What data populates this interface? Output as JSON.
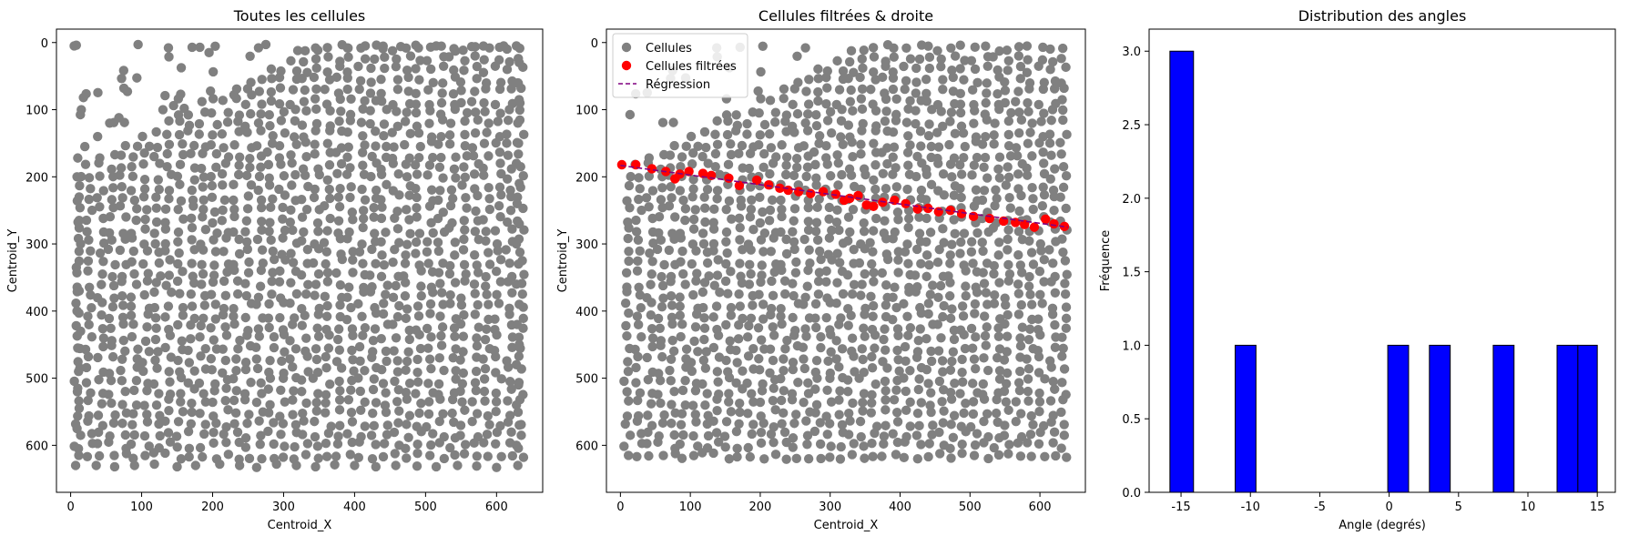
{
  "chart_data": [
    {
      "type": "scatter",
      "title": "Toutes les cellules",
      "xlabel": "Centroid_X",
      "ylabel": "Centroid_Y",
      "xlim": [
        -20,
        665
      ],
      "ylim": [
        670,
        -20
      ],
      "y_inverted": true,
      "xticks": [
        0,
        100,
        200,
        300,
        400,
        500,
        600
      ],
      "yticks": [
        0,
        100,
        200,
        300,
        400,
        500,
        600
      ],
      "series": [
        {
          "color": "#808080",
          "points": [
            [
              5,
              5
            ],
            [
              8,
              4
            ],
            [
              95,
              3
            ],
            [
              182,
              7
            ],
            [
              195,
              15
            ],
            [
              15,
              100
            ],
            [
              18,
              82
            ],
            [
              75,
              68
            ],
            [
              80,
              73
            ],
            [
              68,
              112
            ],
            [
              155,
              77
            ],
            [
              133,
              79
            ],
            [
              130,
              100
            ],
            [
              145,
              94
            ],
            [
              160,
              98
            ],
            [
              185,
              88
            ],
            [
              230,
              78
            ],
            [
              255,
              78
            ],
            [
              275,
              3
            ],
            [
              320,
              12
            ],
            [
              345,
              8
            ],
            [
              20,
              155
            ],
            [
              38,
              140
            ],
            [
              55,
              120
            ],
            [
              10,
              172
            ],
            [
              9,
              200
            ],
            [
              12,
              230
            ],
            [
              12,
              265
            ],
            [
              14,
              300
            ],
            [
              8,
              335
            ],
            [
              12,
              370
            ],
            [
              9,
              400
            ],
            [
              14,
              430
            ],
            [
              10,
              455
            ],
            [
              13,
              485
            ],
            [
              10,
              515
            ],
            [
              12,
              545
            ],
            [
              9,
              575
            ],
            [
              11,
              605
            ],
            [
              7,
              630
            ],
            [
              36,
              630
            ],
            [
              62,
              632
            ],
            [
              90,
              630
            ],
            [
              118,
              628
            ],
            [
              150,
              632
            ],
            [
              176,
              630
            ],
            [
              210,
              628
            ],
            [
              238,
              630
            ],
            [
              262,
              633
            ],
            [
              290,
              628
            ],
            [
              318,
              630
            ],
            [
              345,
              632
            ],
            [
              372,
              629
            ],
            [
              400,
              630
            ],
            [
              430,
              632
            ],
            [
              458,
              630
            ],
            [
              488,
              631
            ],
            [
              515,
              632
            ],
            [
              545,
              630
            ],
            [
              572,
              631
            ],
            [
              600,
              633
            ],
            [
              630,
              630
            ],
            [
              628,
              600
            ],
            [
              632,
              570
            ],
            [
              628,
              540
            ],
            [
              631,
              510
            ],
            [
              628,
              480
            ],
            [
              632,
              450
            ],
            [
              629,
              420
            ],
            [
              632,
              390
            ],
            [
              628,
              360
            ],
            [
              631,
              330
            ],
            [
              628,
              300
            ],
            [
              632,
              270
            ],
            [
              629,
              240
            ],
            [
              632,
              210
            ],
            [
              628,
              180
            ],
            [
              631,
              150
            ],
            [
              630,
              120
            ],
            [
              633,
              90
            ],
            [
              630,
              60
            ],
            [
              632,
              30
            ],
            [
              628,
              5
            ],
            [
              610,
              5
            ],
            [
              590,
              8
            ],
            [
              565,
              6
            ],
            [
              540,
              9
            ],
            [
              515,
              5
            ],
            [
              490,
              8
            ],
            [
              465,
              6
            ],
            [
              440,
              9
            ],
            [
              415,
              5
            ],
            [
              390,
              8
            ]
          ],
          "fill_area": {
            "note": "dense grid of cells across the field"
          }
        }
      ]
    },
    {
      "type": "scatter",
      "title": "Cellules filtrées & droite",
      "xlabel": "Centroid_X",
      "ylabel": "Centroid_Y",
      "xlim": [
        -20,
        665
      ],
      "ylim": [
        670,
        -20
      ],
      "y_inverted": true,
      "xticks": [
        0,
        100,
        200,
        300,
        400,
        500,
        600
      ],
      "yticks": [
        0,
        100,
        200,
        300,
        400,
        500,
        600
      ],
      "legend_position": "top-left",
      "series": [
        {
          "name": "Cellules",
          "color": "#808080"
        },
        {
          "name": "Cellules filtrées",
          "color": "#ff0000",
          "points": [
            [
              2,
              182
            ],
            [
              22,
              182
            ],
            [
              45,
              188
            ],
            [
              65,
              192
            ],
            [
              78,
              203
            ],
            [
              85,
              196
            ],
            [
              98,
              192
            ],
            [
              118,
              195
            ],
            [
              130,
              198
            ],
            [
              155,
              202
            ],
            [
              170,
              213
            ],
            [
              195,
              205
            ],
            [
              212,
              212
            ],
            [
              228,
              217
            ],
            [
              240,
              220
            ],
            [
              255,
              222
            ],
            [
              272,
              225
            ],
            [
              290,
              222
            ],
            [
              308,
              226
            ],
            [
              320,
              235
            ],
            [
              328,
              232
            ],
            [
              340,
              228
            ],
            [
              352,
              242
            ],
            [
              362,
              244
            ],
            [
              375,
              238
            ],
            [
              392,
              235
            ],
            [
              408,
              240
            ],
            [
              425,
              248
            ],
            [
              440,
              247
            ],
            [
              455,
              252
            ],
            [
              472,
              250
            ],
            [
              488,
              255
            ],
            [
              505,
              259
            ],
            [
              528,
              262
            ],
            [
              548,
              266
            ],
            [
              565,
              268
            ],
            [
              578,
              271
            ],
            [
              592,
              275
            ],
            [
              608,
              263
            ],
            [
              620,
              270
            ],
            [
              635,
              274
            ]
          ]
        },
        {
          "name": "Régression",
          "color": "#800080",
          "line": [
            [
              0,
              183
            ],
            [
              640,
              275
            ]
          ]
        }
      ]
    },
    {
      "type": "bar",
      "title": "Distribution des angles",
      "xlabel": "Angle (degrés)",
      "ylabel": "Fréquence",
      "xlim": [
        -17.3,
        16.3
      ],
      "ylim": [
        0,
        3.15
      ],
      "xticks": [
        -15,
        -10,
        -5,
        0,
        5,
        10,
        15
      ],
      "yticks": [
        0.0,
        0.5,
        1.0,
        1.5,
        2.0,
        2.5,
        3.0
      ],
      "color": "#0000ff",
      "bins": [
        {
          "x0": -15.8,
          "x1": -14.1,
          "value": 3
        },
        {
          "x0": -11.1,
          "x1": -9.6,
          "value": 1
        },
        {
          "x0": -0.1,
          "x1": 1.4,
          "value": 1
        },
        {
          "x0": 2.9,
          "x1": 4.4,
          "value": 1
        },
        {
          "x0": 7.5,
          "x1": 9.0,
          "value": 1
        },
        {
          "x0": 12.1,
          "x1": 13.6,
          "value": 1
        },
        {
          "x0": 13.6,
          "x1": 15.0,
          "value": 1
        }
      ]
    }
  ]
}
